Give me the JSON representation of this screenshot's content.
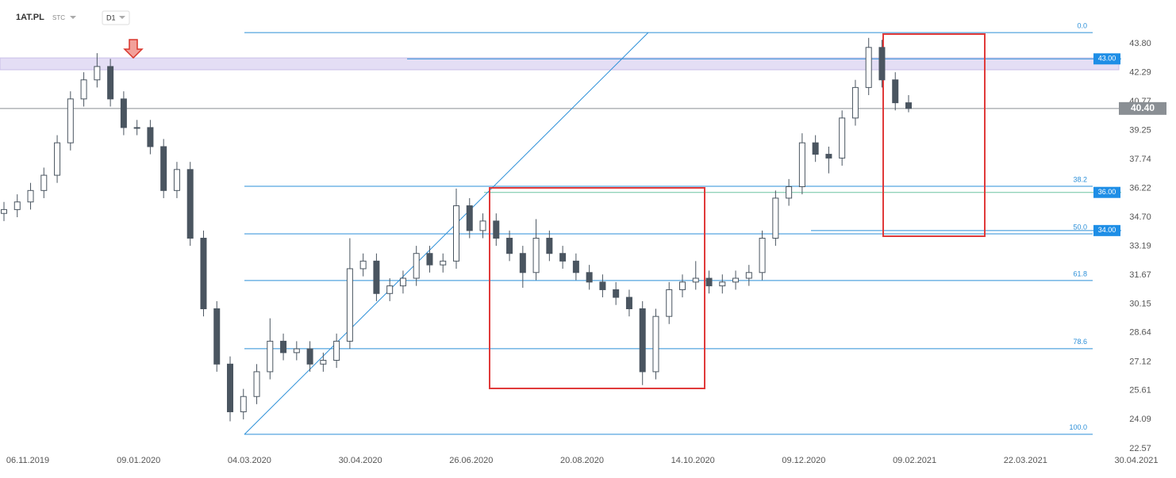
{
  "header": {
    "symbol": "1AT.PL",
    "exchange": "STC",
    "interval": "D1"
  },
  "chart_data": {
    "type": "candlestick",
    "open": [
      34.9,
      35.1,
      35.5,
      36.1,
      36.9,
      38.6,
      40.9,
      41.9,
      42.6,
      40.9,
      39.4,
      39.4,
      38.4,
      36.1,
      37.2,
      33.6,
      29.9,
      27.0,
      24.5,
      25.3,
      26.6,
      28.2,
      27.6,
      27.8,
      27.0,
      27.2,
      28.2,
      32.0,
      32.4,
      30.7,
      31.1,
      31.5,
      32.8,
      32.2,
      32.4,
      35.3,
      34.0,
      34.5,
      33.6,
      32.8,
      31.8,
      33.6,
      32.8,
      32.4,
      31.8,
      31.3,
      30.9,
      30.5,
      29.9,
      26.6,
      29.5,
      30.9,
      31.3,
      31.5,
      31.1,
      31.3,
      31.5,
      31.8,
      33.6,
      35.7,
      36.3,
      38.6,
      38.0,
      37.8,
      39.9,
      41.5,
      43.6,
      41.9,
      40.7
    ],
    "high": [
      35.5,
      35.9,
      36.5,
      37.3,
      39.0,
      41.3,
      42.3,
      43.3,
      43.0,
      41.3,
      39.8,
      39.8,
      38.8,
      37.6,
      37.6,
      34.0,
      30.3,
      27.4,
      25.7,
      27.0,
      29.4,
      28.6,
      28.2,
      28.2,
      27.6,
      28.6,
      33.6,
      32.8,
      32.8,
      31.5,
      31.9,
      33.2,
      33.2,
      32.8,
      36.2,
      35.7,
      34.9,
      34.9,
      34.0,
      33.2,
      34.6,
      34.0,
      33.2,
      32.8,
      32.2,
      31.7,
      31.3,
      30.9,
      30.3,
      29.9,
      31.3,
      31.7,
      32.4,
      31.9,
      31.7,
      31.9,
      32.2,
      34.0,
      36.1,
      36.7,
      39.1,
      39.0,
      38.4,
      40.3,
      41.9,
      44.1,
      44.0,
      42.3,
      41.1
    ],
    "low": [
      34.5,
      34.7,
      35.1,
      35.7,
      36.5,
      38.2,
      40.5,
      41.5,
      40.5,
      39.0,
      39.0,
      38.0,
      35.7,
      35.7,
      33.2,
      29.5,
      26.6,
      24.0,
      24.1,
      24.9,
      26.2,
      27.2,
      27.2,
      26.6,
      26.6,
      26.8,
      27.8,
      31.6,
      30.3,
      30.3,
      30.7,
      31.1,
      31.8,
      31.8,
      32.0,
      33.6,
      33.6,
      33.2,
      32.4,
      31.0,
      31.4,
      32.4,
      32.0,
      31.4,
      30.9,
      30.5,
      30.1,
      29.5,
      25.9,
      26.2,
      29.1,
      30.5,
      30.9,
      30.7,
      30.7,
      30.9,
      31.1,
      31.4,
      33.2,
      35.3,
      35.9,
      37.6,
      37.0,
      37.4,
      39.5,
      41.1,
      41.5,
      40.3,
      40.2
    ],
    "close": [
      35.1,
      35.5,
      36.1,
      36.9,
      38.6,
      40.9,
      41.9,
      42.6,
      40.9,
      39.4,
      39.4,
      38.4,
      36.1,
      37.2,
      33.6,
      29.9,
      27.0,
      24.5,
      25.3,
      26.6,
      28.2,
      27.6,
      27.8,
      27.0,
      27.2,
      28.2,
      32.0,
      32.4,
      30.7,
      31.1,
      31.5,
      32.8,
      32.2,
      32.4,
      35.3,
      34.0,
      34.5,
      33.6,
      32.8,
      31.8,
      33.6,
      32.8,
      32.4,
      31.8,
      31.3,
      30.9,
      30.5,
      29.9,
      26.6,
      29.5,
      30.9,
      31.3,
      31.5,
      31.1,
      31.3,
      31.5,
      31.8,
      33.6,
      35.7,
      36.3,
      38.6,
      38.0,
      37.8,
      39.9,
      41.5,
      43.6,
      41.9,
      40.7,
      40.4
    ],
    "up_color": "#ffffff",
    "down_color": "#4a5560",
    "ylim": [
      22.4,
      44.84
    ],
    "yticks": [
      {
        "value": 43.8,
        "label": "43.80"
      },
      42.29,
      40.77,
      39.25,
      37.74,
      36.22,
      {
        "value": 34.7,
        "label": "34.70"
      },
      33.19,
      31.67,
      30.15,
      28.64,
      27.12,
      25.61,
      24.09,
      22.57
    ],
    "xtick_labels": [
      "06.11.2019",
      "09.01.2020",
      "04.03.2020",
      "30.04.2020",
      "26.06.2020",
      "20.08.2020",
      "14.10.2020",
      "09.12.2020",
      "09.02.2021",
      "22.03.2021",
      "30.04.2021"
    ],
    "fib_levels": [
      {
        "label": "0.0",
        "price": 44.38
      },
      {
        "label": "38.2",
        "price": 36.32
      },
      {
        "label": "50.0",
        "price": 33.83
      },
      {
        "label": "61.8",
        "price": 31.38
      },
      {
        "label": "78.6",
        "price": 27.81
      },
      {
        "label": "100.0",
        "price": 23.32
      }
    ],
    "price_levels": [
      {
        "value": 43,
        "label": "43.00"
      },
      {
        "value": 36,
        "label": "36.00"
      },
      {
        "value": 34,
        "label": "34.00"
      }
    ],
    "last_price": {
      "value": 40.4,
      "label": "40.40"
    },
    "resistance_zone": [
      42.43,
      43.05
    ]
  }
}
